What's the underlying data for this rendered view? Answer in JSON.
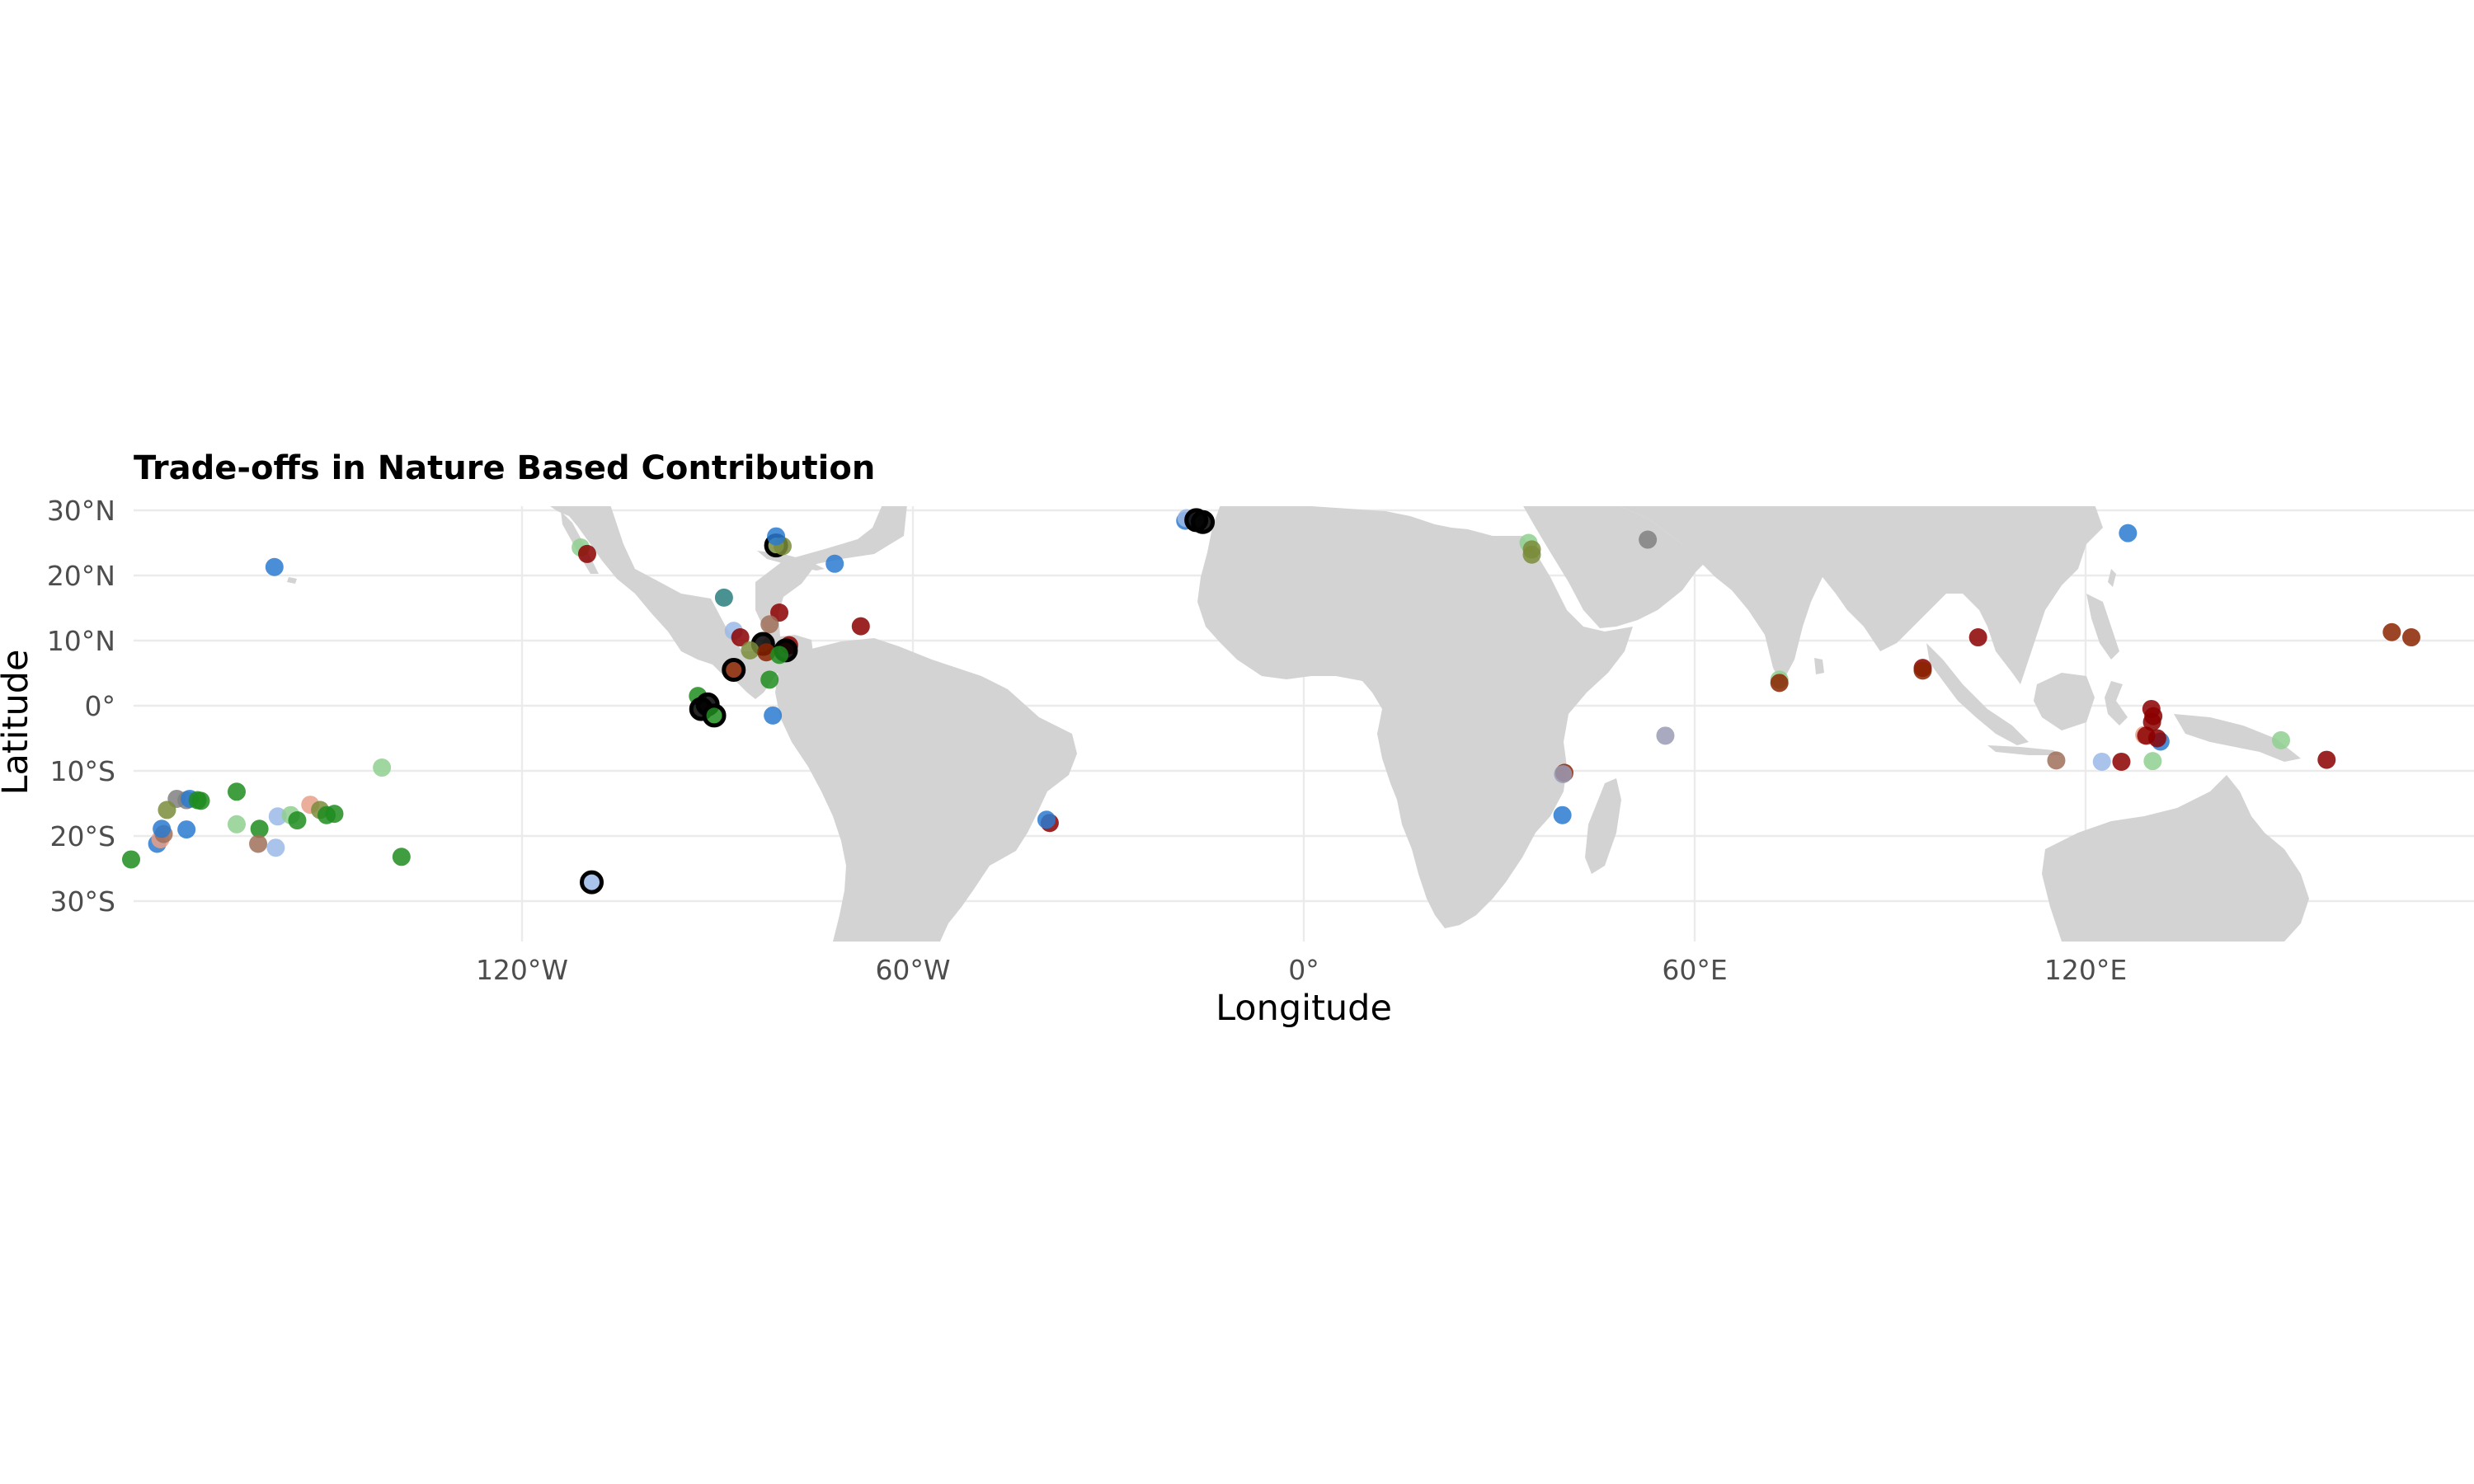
{
  "chart_data": {
    "type": "scatter",
    "title": "Trade-offs in Nature Based Contribution",
    "xlabel": "Longitude",
    "ylabel": "Latitude",
    "xlim": [
      -180,
      180
    ],
    "ylim": [
      -37,
      30
    ],
    "x_ticks": [
      -120,
      -60,
      0,
      60,
      120
    ],
    "x_tick_labels": [
      "120°W",
      "60°W",
      "0°",
      "60°E",
      "120°E"
    ],
    "y_ticks": [
      30,
      20,
      10,
      0,
      -10,
      -20,
      -30
    ],
    "y_tick_labels": [
      "30°N",
      "20°N",
      "10°N",
      "0°",
      "10°S",
      "20°S",
      "30°S"
    ],
    "grid": true,
    "legend": "none",
    "basemap": "world land masses, light grey",
    "colors": {
      "dark_red": "#8b0000",
      "brick": "#8b2500",
      "blue": "#2a7ad0",
      "light_blue": "#9bb8e8",
      "green": "#1e8c1e",
      "light_green": "#8fcf8f",
      "olive": "#7a8c3a",
      "teal": "#2a7f7f",
      "salmon": "#e8a08a",
      "brown": "#a0705a",
      "grey_purple": "#9a9ab5",
      "grey": "#808080",
      "black": "#000000"
    },
    "points": [
      {
        "lon": -158,
        "lat": 21.3,
        "color": "blue"
      },
      {
        "lon": -111,
        "lat": 24.3,
        "color": "light_green"
      },
      {
        "lon": -110,
        "lat": 23.3,
        "color": "dark_red"
      },
      {
        "lon": -81,
        "lat": 24.6,
        "color": "olive",
        "outlined": true
      },
      {
        "lon": -80,
        "lat": 24.5,
        "color": "olive"
      },
      {
        "lon": -81,
        "lat": 26,
        "color": "blue"
      },
      {
        "lon": -72,
        "lat": 21.8,
        "color": "blue"
      },
      {
        "lon": -89,
        "lat": 16.6,
        "color": "teal"
      },
      {
        "lon": -80.5,
        "lat": 14.3,
        "color": "dark_red"
      },
      {
        "lon": -82,
        "lat": 12.5,
        "color": "brown"
      },
      {
        "lon": -87.5,
        "lat": 11.5,
        "color": "light_blue"
      },
      {
        "lon": -86.5,
        "lat": 10.5,
        "color": "dark_red"
      },
      {
        "lon": -83,
        "lat": 9.5,
        "color": "black",
        "outlined": true
      },
      {
        "lon": -79,
        "lat": 9.3,
        "color": "dark_red"
      },
      {
        "lon": -85,
        "lat": 8.5,
        "color": "olive"
      },
      {
        "lon": -82.5,
        "lat": 8.2,
        "color": "brick"
      },
      {
        "lon": -79.5,
        "lat": 8.5,
        "color": "black",
        "outlined": true
      },
      {
        "lon": -80.5,
        "lat": 7.8,
        "color": "green"
      },
      {
        "lon": -87.5,
        "lat": 5.5,
        "color": "brick",
        "outlined": true
      },
      {
        "lon": -82,
        "lat": 4,
        "color": "green"
      },
      {
        "lon": -68,
        "lat": 12.2,
        "color": "dark_red"
      },
      {
        "lon": -93,
        "lat": 1.5,
        "color": "green"
      },
      {
        "lon": -91.5,
        "lat": 0.2,
        "color": "black",
        "outlined": true
      },
      {
        "lon": -92.5,
        "lat": -0.5,
        "color": "black",
        "outlined": true
      },
      {
        "lon": -90.5,
        "lat": -1.5,
        "color": "green",
        "outlined": true
      },
      {
        "lon": -81.5,
        "lat": -1.5,
        "color": "blue"
      },
      {
        "lon": -109.3,
        "lat": -27.1,
        "color": "light_blue",
        "outlined": true
      },
      {
        "lon": -39,
        "lat": -18,
        "color": "dark_red"
      },
      {
        "lon": -39.5,
        "lat": -17.5,
        "color": "blue"
      },
      {
        "lon": -18.2,
        "lat": 28.4,
        "color": "blue"
      },
      {
        "lon": -18,
        "lat": 28.8,
        "color": "light_blue"
      },
      {
        "lon": -16.5,
        "lat": 28.5,
        "color": "black",
        "outlined": true
      },
      {
        "lon": -15.5,
        "lat": 28.2,
        "color": "black",
        "outlined": true
      },
      {
        "lon": 34.5,
        "lat": 25,
        "color": "light_green"
      },
      {
        "lon": 35,
        "lat": 24,
        "color": "olive"
      },
      {
        "lon": 35,
        "lat": 23.2,
        "color": "olive"
      },
      {
        "lon": 52.8,
        "lat": 25.5,
        "color": "grey"
      },
      {
        "lon": 73,
        "lat": 4,
        "color": "light_green"
      },
      {
        "lon": 73,
        "lat": 3.5,
        "color": "brick"
      },
      {
        "lon": 95,
        "lat": 5.8,
        "color": "dark_red"
      },
      {
        "lon": 95,
        "lat": 5.4,
        "color": "brick"
      },
      {
        "lon": 103.5,
        "lat": 10.5,
        "color": "dark_red"
      },
      {
        "lon": 55.5,
        "lat": -4.6,
        "color": "grey_purple"
      },
      {
        "lon": 40,
        "lat": -10.3,
        "color": "brick"
      },
      {
        "lon": 39.8,
        "lat": -10.5,
        "color": "grey_purple"
      },
      {
        "lon": 39.7,
        "lat": -16.8,
        "color": "blue"
      },
      {
        "lon": 115.5,
        "lat": -8.4,
        "color": "brown"
      },
      {
        "lon": 122.5,
        "lat": -8.6,
        "color": "light_blue"
      },
      {
        "lon": 125.5,
        "lat": -8.6,
        "color": "dark_red"
      },
      {
        "lon": 126.5,
        "lat": 26.5,
        "color": "blue"
      },
      {
        "lon": 129,
        "lat": -4.5,
        "color": "salmon"
      },
      {
        "lon": 131.5,
        "lat": -5.5,
        "color": "blue"
      },
      {
        "lon": 131,
        "lat": -5,
        "color": "dark_red"
      },
      {
        "lon": 129.3,
        "lat": -4.6,
        "color": "dark_red"
      },
      {
        "lon": 130.1,
        "lat": -0.5,
        "color": "dark_red"
      },
      {
        "lon": 130.4,
        "lat": -1.6,
        "color": "dark_red"
      },
      {
        "lon": 130.2,
        "lat": -2.5,
        "color": "dark_red"
      },
      {
        "lon": 130.3,
        "lat": -8.5,
        "color": "light_green"
      },
      {
        "lon": 150,
        "lat": -5.3,
        "color": "light_green"
      },
      {
        "lon": 157,
        "lat": -8.3,
        "color": "dark_red"
      },
      {
        "lon": 167,
        "lat": 11.3,
        "color": "brick"
      },
      {
        "lon": 170,
        "lat": 10.5,
        "color": "brick"
      },
      {
        "lon": -180,
        "lat": -23.6,
        "color": "green"
      },
      {
        "lon": -176,
        "lat": -21.2,
        "color": "blue"
      },
      {
        "lon": -175.5,
        "lat": -20.5,
        "color": "salmon"
      },
      {
        "lon": -175,
        "lat": -19.7,
        "color": "brown"
      },
      {
        "lon": -175.3,
        "lat": -18.9,
        "color": "blue"
      },
      {
        "lon": -173,
        "lat": -14.3,
        "color": "grey"
      },
      {
        "lon": -171.5,
        "lat": -14.5,
        "color": "grey"
      },
      {
        "lon": -171,
        "lat": -14.3,
        "color": "blue"
      },
      {
        "lon": -174.5,
        "lat": -16,
        "color": "olive"
      },
      {
        "lon": -169.8,
        "lat": -14.5,
        "color": "green"
      },
      {
        "lon": -169.3,
        "lat": -14.6,
        "color": "green"
      },
      {
        "lon": -171.5,
        "lat": -19,
        "color": "blue"
      },
      {
        "lon": -163.8,
        "lat": -13.2,
        "color": "green"
      },
      {
        "lon": -163.8,
        "lat": -18.2,
        "color": "light_green"
      },
      {
        "lon": -160.3,
        "lat": -18.9,
        "color": "green"
      },
      {
        "lon": -160.5,
        "lat": -21.2,
        "color": "brown"
      },
      {
        "lon": -157.5,
        "lat": -17,
        "color": "light_blue"
      },
      {
        "lon": -157.8,
        "lat": -21.8,
        "color": "light_blue"
      },
      {
        "lon": -155.5,
        "lat": -16.8,
        "color": "light_green"
      },
      {
        "lon": -154.5,
        "lat": -17.6,
        "color": "green"
      },
      {
        "lon": -152.5,
        "lat": -15.2,
        "color": "salmon"
      },
      {
        "lon": -151,
        "lat": -16,
        "color": "olive"
      },
      {
        "lon": -150,
        "lat": -16.8,
        "color": "green"
      },
      {
        "lon": -148.8,
        "lat": -16.6,
        "color": "green"
      },
      {
        "lon": -141.5,
        "lat": -9.5,
        "color": "light_green"
      },
      {
        "lon": -138.5,
        "lat": -23.2,
        "color": "green"
      }
    ]
  }
}
